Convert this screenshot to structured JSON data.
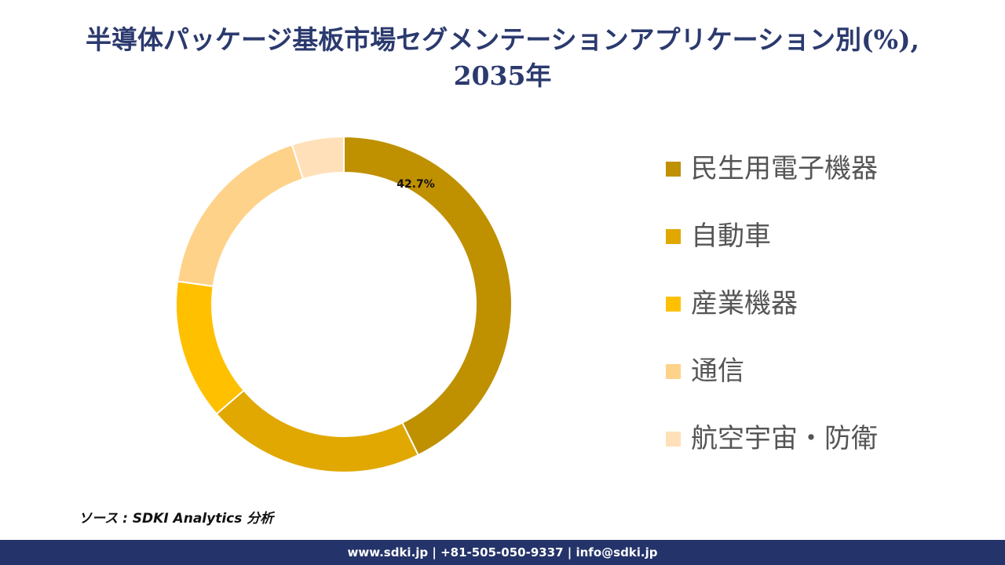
{
  "title": {
    "line1": "半導体パッケージ基板市場セグメンテーションアプリケーション別(%),",
    "line2": "2035年"
  },
  "chart_data": {
    "type": "pie",
    "donut": true,
    "categories": [
      "民生用電子機器",
      "自動車",
      "産業機器",
      "通信",
      "航空宇宙・防衛"
    ],
    "values": [
      42.7,
      21.0,
      13.5,
      17.8,
      5.0
    ],
    "colors": [
      "#bf9000",
      "#e0a800",
      "#ffc000",
      "#ffd28a",
      "#ffe0b8"
    ],
    "data_labels": [
      "42.7%",
      "",
      "",
      "",
      ""
    ],
    "legend_position": "right"
  },
  "source": "ソース : SDKI Analytics 分析",
  "footer": "www.sdki.jp | +81-505-050-9337 | info@sdki.jp"
}
